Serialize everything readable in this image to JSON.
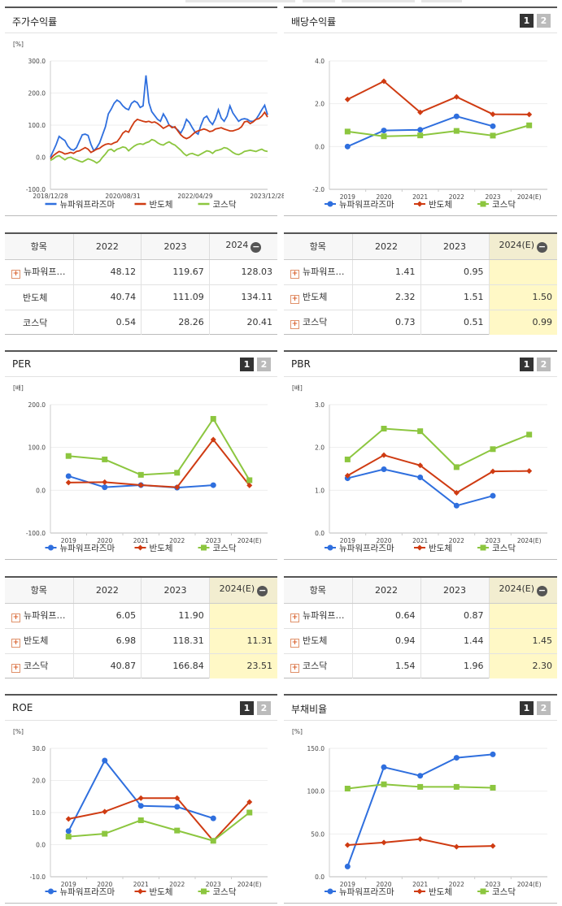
{
  "colors": {
    "series1": "#2f6fde",
    "series2": "#cf3b12",
    "series3": "#8cc63f"
  },
  "series_names": [
    "뉴파워프라즈마",
    "반도체",
    "코스닥"
  ],
  "toggle_labels": [
    "1",
    "2"
  ],
  "stock_chart": {
    "title": "주가수익률",
    "unit": "[%]",
    "chart_data": {
      "type": "line",
      "ylim": [
        -100,
        300
      ],
      "yticks": [
        "300.0",
        "200.0",
        "100.0",
        "0.0",
        "-100.0"
      ],
      "xticks": [
        "2018/12/28",
        "2020/08/31",
        "2022/04/29",
        "2023/12/28"
      ],
      "series": [
        {
          "name": "뉴파워프라즈마",
          "values": [
            0,
            20,
            40,
            65,
            58,
            52,
            35,
            25,
            22,
            30,
            50,
            70,
            72,
            68,
            40,
            20,
            30,
            45,
            70,
            95,
            135,
            150,
            168,
            178,
            172,
            160,
            152,
            148,
            168,
            175,
            170,
            155,
            160,
            255,
            170,
            142,
            130,
            118,
            112,
            135,
            120,
            100,
            95,
            92,
            85,
            75,
            92,
            118,
            108,
            92,
            78,
            72,
            100,
            122,
            128,
            112,
            102,
            120,
            148,
            122,
            112,
            128,
            160,
            138,
            125,
            112,
            118,
            120,
            118,
            112,
            112,
            118,
            132,
            148,
            162,
            132
          ]
        },
        {
          "name": "반도체",
          "values": [
            -5,
            5,
            12,
            18,
            15,
            10,
            12,
            15,
            12,
            18,
            20,
            25,
            30,
            25,
            15,
            20,
            25,
            28,
            35,
            40,
            42,
            40,
            45,
            48,
            60,
            75,
            82,
            78,
            95,
            110,
            118,
            115,
            112,
            110,
            112,
            108,
            110,
            105,
            98,
            90,
            95,
            100,
            92,
            95,
            82,
            70,
            62,
            58,
            62,
            70,
            78,
            82,
            85,
            88,
            85,
            80,
            82,
            88,
            90,
            92,
            88,
            85,
            82,
            82,
            85,
            88,
            95,
            110,
            112,
            105,
            110,
            118,
            120,
            128,
            140,
            125
          ]
        },
        {
          "name": "코스닥",
          "values": [
            -10,
            -5,
            2,
            5,
            -2,
            -8,
            -2,
            0,
            -5,
            -8,
            -12,
            -15,
            -10,
            -5,
            -8,
            -12,
            -18,
            -12,
            0,
            10,
            22,
            25,
            18,
            25,
            28,
            32,
            30,
            20,
            28,
            35,
            40,
            42,
            40,
            45,
            48,
            55,
            52,
            45,
            40,
            38,
            44,
            48,
            42,
            38,
            30,
            22,
            12,
            5,
            10,
            12,
            8,
            5,
            10,
            15,
            20,
            18,
            12,
            20,
            22,
            25,
            30,
            28,
            22,
            15,
            10,
            8,
            12,
            18,
            20,
            22,
            20,
            18,
            22,
            25,
            20,
            18
          ]
        }
      ]
    }
  },
  "dividend_chart": {
    "title": "배당수익률",
    "unit": "",
    "chart_data": {
      "type": "line",
      "categories": [
        "2019",
        "2020",
        "2021",
        "2022",
        "2023",
        "2024(E)"
      ],
      "ylim": [
        -2,
        4
      ],
      "yticks": [
        "4.0",
        "2.0",
        "0.0",
        "-2.0"
      ],
      "series": [
        {
          "name": "뉴파워프라즈마",
          "values": [
            0.0,
            0.75,
            0.78,
            1.41,
            0.95,
            null
          ]
        },
        {
          "name": "반도체",
          "values": [
            2.2,
            3.05,
            1.6,
            2.32,
            1.51,
            1.5
          ]
        },
        {
          "name": "코스닥",
          "values": [
            0.7,
            0.48,
            0.52,
            0.73,
            0.51,
            0.99
          ]
        }
      ]
    }
  },
  "per_chart": {
    "title": "PER",
    "unit": "[배]",
    "chart_data": {
      "type": "line",
      "categories": [
        "2019",
        "2020",
        "2021",
        "2022",
        "2023",
        "2024(E)"
      ],
      "ylim": [
        -100,
        200
      ],
      "yticks": [
        "200.0",
        "100.0",
        "0.0",
        "-100.0"
      ],
      "series": [
        {
          "name": "뉴파워프라즈마",
          "values": [
            33,
            7,
            12,
            6.05,
            11.9,
            null
          ]
        },
        {
          "name": "반도체",
          "values": [
            18,
            19,
            12,
            6.98,
            118.31,
            11.31
          ]
        },
        {
          "name": "코스닥",
          "values": [
            80,
            72,
            36,
            40.87,
            166.84,
            23.51
          ]
        }
      ]
    }
  },
  "pbr_chart": {
    "title": "PBR",
    "unit": "[배]",
    "chart_data": {
      "type": "line",
      "categories": [
        "2019",
        "2020",
        "2021",
        "2022",
        "2023",
        "2024(E)"
      ],
      "ylim": [
        0,
        3
      ],
      "yticks": [
        "3.0",
        "2.0",
        "1.0",
        "0.0"
      ],
      "series": [
        {
          "name": "뉴파워프라즈마",
          "values": [
            1.28,
            1.49,
            1.3,
            0.64,
            0.87,
            null
          ]
        },
        {
          "name": "반도체",
          "values": [
            1.34,
            1.82,
            1.58,
            0.94,
            1.44,
            1.45
          ]
        },
        {
          "name": "코스닥",
          "values": [
            1.72,
            2.44,
            2.38,
            1.54,
            1.96,
            2.3
          ]
        }
      ]
    }
  },
  "roe_chart": {
    "title": "ROE",
    "unit": "[%]",
    "chart_data": {
      "type": "line",
      "categories": [
        "2019",
        "2020",
        "2021",
        "2022",
        "2023",
        "2024(E)"
      ],
      "ylim": [
        -10,
        30
      ],
      "yticks": [
        "30.0",
        "20.0",
        "10.0",
        "0.0",
        "-10.0"
      ],
      "series": [
        {
          "name": "뉴파워프라즈마",
          "values": [
            4.2,
            26.2,
            12.1,
            11.8,
            8.2,
            null
          ]
        },
        {
          "name": "반도체",
          "values": [
            8.0,
            10.3,
            14.5,
            14.5,
            1.2,
            13.3
          ]
        },
        {
          "name": "코스닥",
          "values": [
            2.5,
            3.4,
            7.6,
            4.4,
            1.2,
            10.0
          ]
        }
      ]
    }
  },
  "debt_chart": {
    "title": "부채비율",
    "unit": "[%]",
    "chart_data": {
      "type": "line",
      "categories": [
        "2019",
        "2020",
        "2021",
        "2022",
        "2023",
        "2024(E)"
      ],
      "ylim": [
        0,
        150
      ],
      "yticks": [
        "150.0",
        "100.0",
        "50.0",
        "0.0"
      ],
      "series": [
        {
          "name": "뉴파워프라즈마",
          "values": [
            12,
            128,
            118,
            139,
            143,
            null
          ]
        },
        {
          "name": "반도체",
          "values": [
            37,
            40,
            44,
            35,
            36,
            null
          ]
        },
        {
          "name": "코스닥",
          "values": [
            103,
            108,
            105,
            105,
            104,
            null
          ]
        }
      ]
    }
  },
  "stock_table": {
    "headers": [
      "항목",
      "2022",
      "2023",
      "2024"
    ],
    "rows": [
      {
        "name": "뉴파워프…",
        "plus": true,
        "values": [
          "48.12",
          "119.67",
          "128.03"
        ]
      },
      {
        "name": "반도체",
        "plus": false,
        "values": [
          "40.74",
          "111.09",
          "134.11"
        ]
      },
      {
        "name": "코스닥",
        "plus": false,
        "values": [
          "0.54",
          "28.26",
          "20.41"
        ]
      }
    ]
  },
  "dividend_table": {
    "headers": [
      "항목",
      "2022",
      "2023",
      "2024(E)"
    ],
    "rows": [
      {
        "name": "뉴파워프…",
        "plus": true,
        "values": [
          "1.41",
          "0.95",
          ""
        ]
      },
      {
        "name": "반도체",
        "plus": true,
        "values": [
          "2.32",
          "1.51",
          "1.50"
        ]
      },
      {
        "name": "코스닥",
        "plus": true,
        "values": [
          "0.73",
          "0.51",
          "0.99"
        ]
      }
    ]
  },
  "per_table": {
    "headers": [
      "항목",
      "2022",
      "2023",
      "2024(E)"
    ],
    "rows": [
      {
        "name": "뉴파워프…",
        "plus": true,
        "values": [
          "6.05",
          "11.90",
          ""
        ]
      },
      {
        "name": "반도체",
        "plus": true,
        "values": [
          "6.98",
          "118.31",
          "11.31"
        ]
      },
      {
        "name": "코스닥",
        "plus": true,
        "values": [
          "40.87",
          "166.84",
          "23.51"
        ]
      }
    ]
  },
  "pbr_table": {
    "headers": [
      "항목",
      "2022",
      "2023",
      "2024(E)"
    ],
    "rows": [
      {
        "name": "뉴파워프…",
        "plus": true,
        "values": [
          "0.64",
          "0.87",
          ""
        ]
      },
      {
        "name": "반도체",
        "plus": true,
        "values": [
          "0.94",
          "1.44",
          "1.45"
        ]
      },
      {
        "name": "코스닥",
        "plus": true,
        "values": [
          "1.54",
          "1.96",
          "2.30"
        ]
      }
    ]
  }
}
